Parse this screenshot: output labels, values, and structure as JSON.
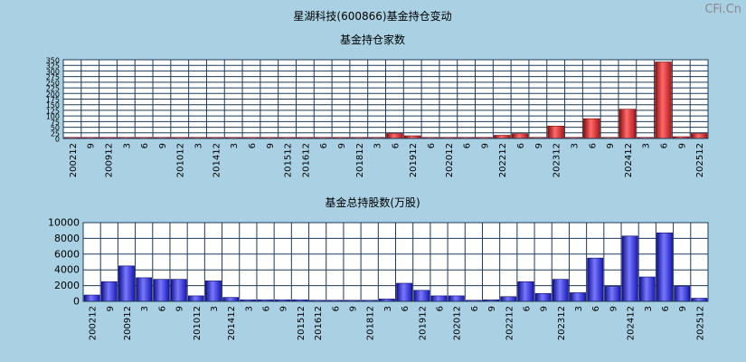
{
  "title": "星湖科技(600866)基金持仓变动",
  "watermark": "CFi.Cn",
  "colors": {
    "background": "#a9d1e3",
    "red_bar": "#e03030",
    "blue_bar": "#3030e8"
  },
  "chart_data": [
    {
      "type": "bar",
      "title": "基金持仓家数",
      "ylim": [
        0,
        350
      ],
      "yticks": [
        0,
        25,
        50,
        75,
        100,
        125,
        150,
        175,
        200,
        225,
        250,
        275,
        300,
        325,
        350
      ],
      "categories": [
        "200212",
        "9",
        "200912",
        "3",
        "6",
        "9",
        "201012",
        "3",
        "201412",
        "3",
        "6",
        "9",
        "201512",
        "201612",
        "6",
        "9",
        "201812",
        "3",
        "6",
        "201912",
        "6",
        "202012",
        "6",
        "9",
        "202212",
        "6",
        "9",
        "202312",
        "3",
        "6",
        "9",
        "202412",
        "3",
        "6",
        "9",
        "202512"
      ],
      "values": [
        1,
        1,
        1,
        2,
        1,
        1,
        1,
        1,
        1,
        1,
        1,
        1,
        1,
        1,
        1,
        1,
        1,
        1,
        22,
        12,
        1,
        1,
        1,
        2,
        14,
        21,
        2,
        55,
        2,
        88,
        2,
        130,
        2,
        340,
        8,
        22
      ]
    },
    {
      "type": "bar",
      "title": "基金总持股数(万股)",
      "ylim": [
        0,
        10000
      ],
      "yticks": [
        0,
        2000,
        4000,
        6000,
        8000,
        10000
      ],
      "categories": [
        "200212",
        "9",
        "200912",
        "3",
        "6",
        "9",
        "201012",
        "3",
        "201412",
        "3",
        "6",
        "9",
        "201512",
        "201612",
        "6",
        "9",
        "201812",
        "3",
        "6",
        "201912",
        "6",
        "202012",
        "6",
        "9",
        "202212",
        "6",
        "9",
        "202312",
        "3",
        "6",
        "9",
        "202412",
        "3",
        "6",
        "9",
        "202512"
      ],
      "values": [
        800,
        2500,
        4500,
        3000,
        2800,
        2800,
        700,
        2600,
        500,
        200,
        200,
        200,
        200,
        100,
        100,
        100,
        100,
        300,
        2300,
        1400,
        700,
        700,
        100,
        200,
        600,
        2500,
        1000,
        2800,
        1100,
        5500,
        1900,
        8300,
        3100,
        8700,
        1900,
        400
      ]
    }
  ]
}
